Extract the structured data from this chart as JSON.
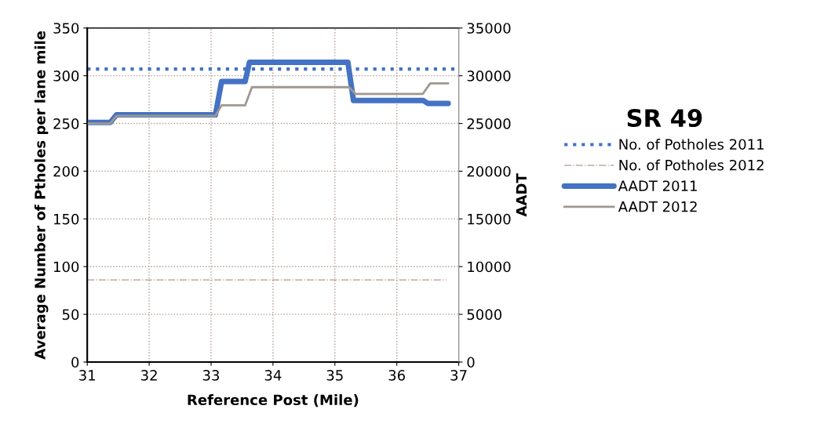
{
  "chart_data": {
    "type": "line",
    "xlabel": "Reference Post (Mile)",
    "ylabel": "Average Number of Ptholes per lane mile",
    "y2label": "AADT",
    "legend_title": "SR 49",
    "xlim": [
      31,
      37
    ],
    "xticks": [
      31,
      32,
      33,
      34,
      35,
      36,
      37
    ],
    "ylim": [
      0,
      350
    ],
    "yticks": [
      0,
      50,
      100,
      150,
      200,
      250,
      300,
      350
    ],
    "y2lim": [
      0,
      35000
    ],
    "y2ticks": [
      0,
      5000,
      10000,
      15000,
      20000,
      25000,
      30000,
      35000
    ],
    "grid": true,
    "legend": "right",
    "marker": "none",
    "series": [
      {
        "name": "No. of Potholes 2011",
        "color": "#4472c4",
        "line_style": "dotted",
        "x": [
          31,
          37
        ],
        "values": [
          307,
          307
        ]
      },
      {
        "name": "No. of Potholes 2012",
        "color": "#c0a8a0",
        "line_style": "dashdot",
        "x": [
          31,
          36.8
        ],
        "values": [
          86,
          86
        ]
      },
      {
        "name": "AADT 2011",
        "color": "#4472c4",
        "line_style": "solid",
        "axis": "y2",
        "x": [
          31,
          31.37,
          31.47,
          33.07,
          33.17,
          33.55,
          33.62,
          35.21,
          35.3,
          36.43,
          36.5,
          36.83
        ],
        "values": [
          25100,
          25100,
          25900,
          25900,
          29400,
          29400,
          31400,
          31400,
          27400,
          27400,
          27100,
          27100
        ]
      },
      {
        "name": "AADT 2012",
        "color": "#a09890",
        "line_style": "solid",
        "axis": "y2",
        "x": [
          31,
          31.37,
          31.47,
          33.07,
          33.17,
          33.55,
          33.66,
          35.23,
          35.33,
          36.42,
          36.54,
          36.83
        ],
        "values": [
          25000,
          25000,
          25800,
          25800,
          26900,
          26900,
          28800,
          28800,
          28100,
          28100,
          29200,
          29200
        ]
      }
    ]
  }
}
